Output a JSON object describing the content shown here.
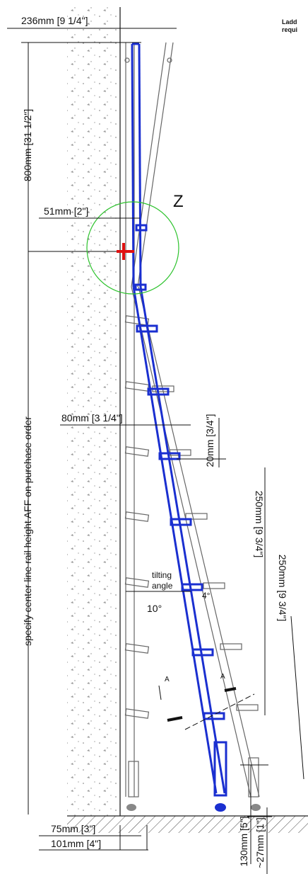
{
  "header": {
    "note_line1": "Ladd",
    "note_line2": "requi"
  },
  "dimensions": {
    "top_width": "236mm [9 1/4\"]",
    "upper_height": "800mm [31 1/2\"]",
    "offset": "51mm [2\"]",
    "rail_offset": "80mm [3 1/4\"]",
    "small_gap": "20mm [3/4\"]",
    "rung_spacing_1": "250mm [9 3/4\"]",
    "rung_spacing_2": "250mm [9 3/4\"]",
    "foot_1": "75mm [3\"]",
    "foot_2": "101mm [4\"]",
    "bottom_1": "130mm [5\"]",
    "bottom_2": "~27mm [1\"]"
  },
  "labels": {
    "detail": "Z",
    "height_note": "specify center line rail height AFF on purchase order",
    "tilting_1": "tilting",
    "tilting_2": "angle",
    "angle_small": "4°",
    "angle_main": "10°",
    "section_left": "A",
    "section_right": "A"
  }
}
